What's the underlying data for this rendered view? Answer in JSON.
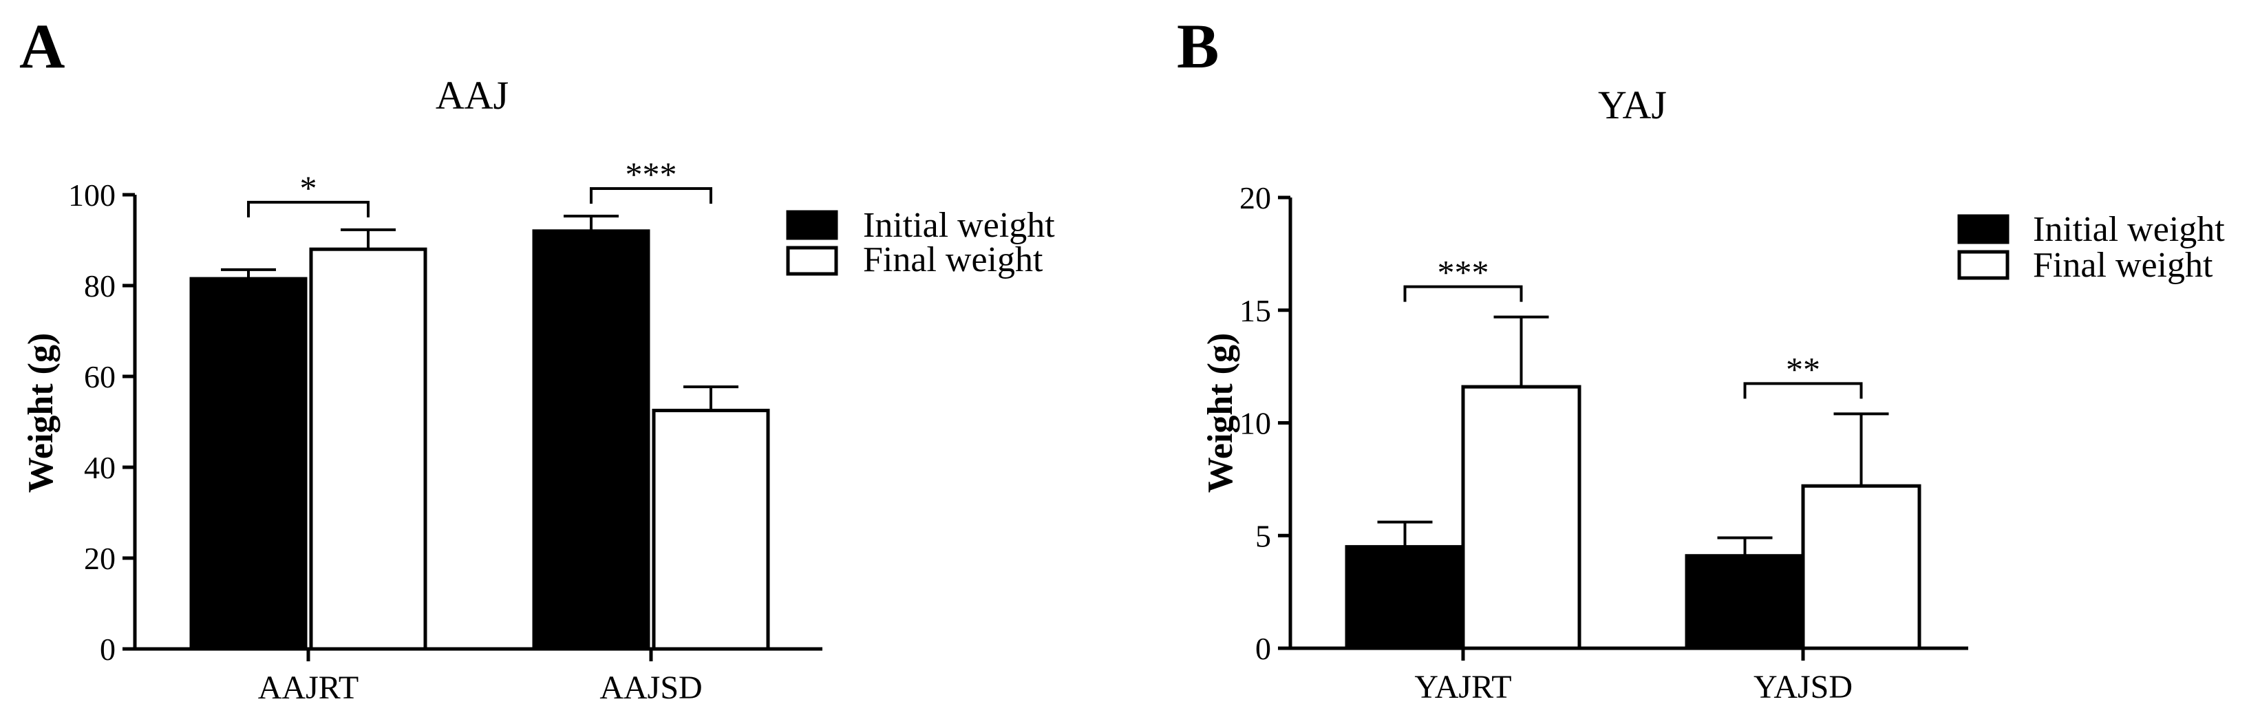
{
  "chart_data": [
    {
      "type": "bar",
      "panel_label": "A",
      "title": "AAJ",
      "xlabel": "",
      "ylabel": "Weight (g)",
      "ylim": [
        0,
        100
      ],
      "yticks": [
        0,
        20,
        40,
        60,
        80,
        100
      ],
      "categories": [
        "AAJRT",
        "AAJSD"
      ],
      "series": [
        {
          "name": "Initial weight",
          "color": "#000000",
          "values": [
            81.5,
            92
          ],
          "errors": [
            2,
            3.3
          ]
        },
        {
          "name": "Final weight",
          "color": "#ffffff",
          "values": [
            88,
            52.5
          ],
          "errors": [
            4.3,
            5.2
          ]
        }
      ],
      "significance": [
        "*",
        "***"
      ],
      "legend": [
        "Initial weight",
        "Final weight"
      ],
      "legend_position": "top-right",
      "grid": false
    },
    {
      "type": "bar",
      "panel_label": "B",
      "title": "YAJ",
      "xlabel": "",
      "ylabel": "Weight (g)",
      "ylim": [
        0,
        20
      ],
      "yticks": [
        0,
        5,
        10,
        15,
        20
      ],
      "categories": [
        "YAJRT",
        "YAJSD"
      ],
      "series": [
        {
          "name": "Initial weight",
          "color": "#000000",
          "values": [
            4.5,
            4.1
          ],
          "errors": [
            1.1,
            0.8
          ]
        },
        {
          "name": "Final weight",
          "color": "#ffffff",
          "values": [
            11.6,
            7.2
          ],
          "errors": [
            3.1,
            3.2
          ]
        }
      ],
      "significance": [
        "***",
        "**"
      ],
      "legend": [
        "Initial weight",
        "Final weight"
      ],
      "legend_position": "top-right",
      "grid": false
    }
  ]
}
